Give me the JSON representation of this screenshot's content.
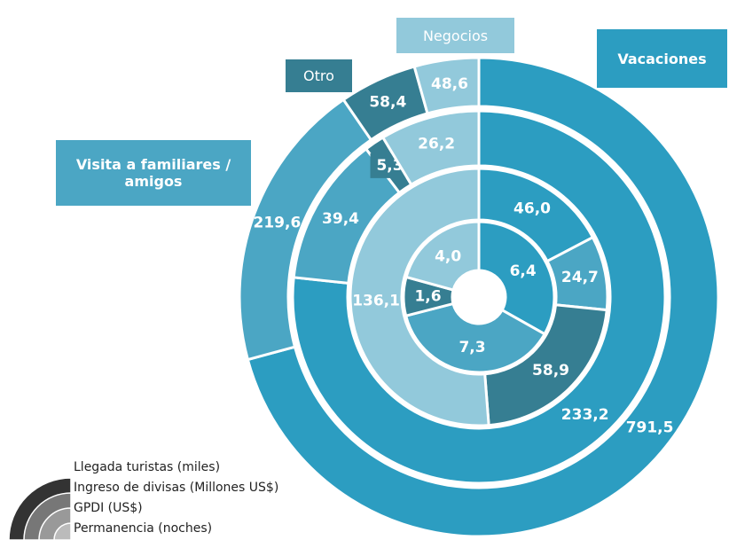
{
  "chart_data": {
    "type": "donut-rings",
    "categories": [
      "Vacaciones",
      "Visita a familiares / amigos",
      "Otro",
      "Negocios"
    ],
    "colors": [
      "#2c9dc1",
      "#4ba6c4",
      "#367e92",
      "#92c9db"
    ],
    "series": [
      {
        "name": "Llegada turistas (miles)",
        "values": [
          791.5,
          219.6,
          58.4,
          48.6
        ],
        "value_labels": [
          "791,5",
          "219,6",
          "58,4",
          "48,6"
        ]
      },
      {
        "name": "Ingreso de divisas (Millones US$)",
        "values": [
          233.2,
          39.4,
          5.3,
          26.2
        ],
        "value_labels": [
          "233,2",
          "39,4",
          "5,3",
          "26,2"
        ]
      },
      {
        "name": "GPDI (US$)",
        "values": [
          46.0,
          24.7,
          58.9,
          136.1
        ],
        "value_labels": [
          "46,0",
          "24,7",
          "58,9",
          "136,1"
        ]
      },
      {
        "name": "Permanencia (noches)",
        "values": [
          6.4,
          7.3,
          1.6,
          4.0
        ],
        "value_labels": [
          "6,4",
          "7,3",
          "1,6",
          "4,0"
        ]
      }
    ]
  }
}
